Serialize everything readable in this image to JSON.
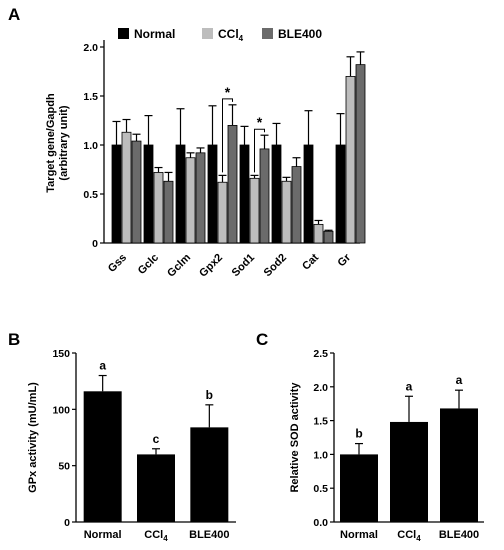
{
  "colors": {
    "normal": "#000000",
    "ccl4": "#bdbdbd",
    "ble400": "#6b6b6b",
    "axis": "#000000"
  },
  "chart_data": [
    {
      "panel": "A",
      "type": "bar",
      "ylabel": "Target gene/Gapdh\n(arbitrary unit)",
      "ylim": [
        0,
        2.0
      ],
      "yticks": [
        "0",
        "0.5",
        "1.0",
        "1.5",
        "2.0"
      ],
      "ytick_values": [
        0,
        0.5,
        1.0,
        1.5,
        2.0
      ],
      "categories": [
        "Gss",
        "Gclc",
        "Gclm",
        "Gpx2",
        "Sod1",
        "Sod2",
        "Cat",
        "Gr"
      ],
      "legend": {
        "placement": "top",
        "entries": [
          {
            "label": "Normal",
            "sub": "",
            "color": "#000000"
          },
          {
            "label": "CCl",
            "sub": "4",
            "color": "#bdbdbd"
          },
          {
            "label": "BLE400",
            "sub": "",
            "color": "#6b6b6b"
          }
        ]
      },
      "series": [
        {
          "name": "Normal",
          "values": [
            1.0,
            1.0,
            1.0,
            1.0,
            1.0,
            1.0,
            1.0,
            1.0
          ],
          "errors": [
            0.24,
            0.3,
            0.37,
            0.4,
            0.19,
            0.22,
            0.35,
            0.32
          ]
        },
        {
          "name": "CCl4",
          "values": [
            1.13,
            0.72,
            0.87,
            0.62,
            0.66,
            0.63,
            0.19,
            1.7
          ],
          "errors": [
            0.13,
            0.05,
            0.05,
            0.07,
            0.03,
            0.04,
            0.04,
            0.2
          ]
        },
        {
          "name": "BLE400",
          "values": [
            1.04,
            0.63,
            0.92,
            1.2,
            0.96,
            0.78,
            0.12,
            1.82
          ],
          "errors": [
            0.07,
            0.09,
            0.05,
            0.21,
            0.14,
            0.09,
            0.01,
            0.13
          ]
        }
      ],
      "annotations": [
        {
          "category_index": 3,
          "from": "CCl4",
          "to": "BLE400",
          "text": "*"
        },
        {
          "category_index": 4,
          "from": "CCl4",
          "to": "BLE400",
          "text": "*"
        }
      ]
    },
    {
      "panel": "B",
      "type": "bar",
      "ylabel": "GPx activity (mU/mL)",
      "ylim": [
        0,
        150
      ],
      "yticks": [
        "0",
        "50",
        "100",
        "150"
      ],
      "ytick_values": [
        0,
        50,
        100,
        150
      ],
      "categories": [
        {
          "label": "Normal",
          "sub": ""
        },
        {
          "label": "CCl",
          "sub": "4"
        },
        {
          "label": "BLE400",
          "sub": ""
        }
      ],
      "values": [
        116,
        60,
        84
      ],
      "errors": [
        14,
        5,
        20
      ],
      "letters": [
        "a",
        "c",
        "b"
      ]
    },
    {
      "panel": "C",
      "type": "bar",
      "ylabel": "Relative SOD activity",
      "ylim": [
        0,
        2.5
      ],
      "yticks": [
        "0.0",
        "0.5",
        "1.0",
        "1.5",
        "2.0",
        "2.5"
      ],
      "ytick_values": [
        0,
        0.5,
        1.0,
        1.5,
        2.0,
        2.5
      ],
      "categories": [
        {
          "label": "Normal",
          "sub": ""
        },
        {
          "label": "CCl",
          "sub": "4"
        },
        {
          "label": "BLE400",
          "sub": ""
        }
      ],
      "values": [
        1.0,
        1.48,
        1.68
      ],
      "errors": [
        0.16,
        0.38,
        0.27
      ],
      "letters": [
        "b",
        "a",
        "a"
      ]
    }
  ]
}
